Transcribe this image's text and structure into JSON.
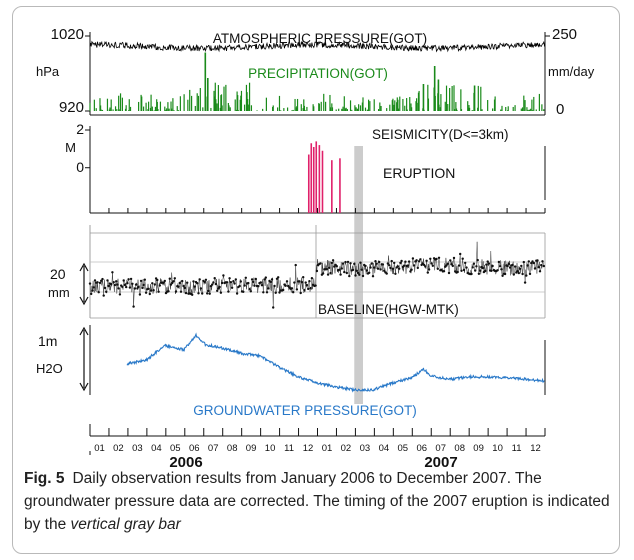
{
  "caption": {
    "label": "Fig. 5",
    "text": "Daily observation results from January 2006 to December 2007. The groundwater pressure data are corrected. The timing of the 2007 eruption is indicated by the",
    "emphasis": "vertical gray bar"
  },
  "chart_data": [
    {
      "type": "line",
      "title": "ATMOSPHERIC PRESSURE(GOT)",
      "ylabel": "hPa",
      "yticks": [
        "1020",
        "920"
      ],
      "ylim": [
        920,
        1020
      ],
      "color": "#000000",
      "description_values": {
        "mean": 1006,
        "amplitude": 8
      }
    },
    {
      "type": "bar",
      "title": "PRECIPITATION(GOT)",
      "ylabel": "mm/day",
      "yticks": [
        "250",
        "0"
      ],
      "ylim": [
        0,
        250
      ],
      "color": "#1a8a1a",
      "notable_days": [
        {
          "date": "2006-07-05",
          "value": 195
        },
        {
          "date": "2006-07-09",
          "value": 110
        },
        {
          "date": "2007-07-08",
          "value": 150
        },
        {
          "date": "2007-07-14",
          "value": 105
        },
        {
          "date": "2007-06-20",
          "value": 90
        },
        {
          "date": "2007-09-10",
          "value": 85
        }
      ]
    },
    {
      "type": "bar",
      "title": "SEISMICITY(D<=3km)",
      "ylabel": "M",
      "yticks": [
        "2",
        "0"
      ],
      "ylim": [
        -2.4,
        2
      ],
      "color": "#e0206a",
      "events": [
        {
          "date": "2006-12-18",
          "magnitude": 0.7
        },
        {
          "date": "2006-12-22",
          "magnitude": 1.3
        },
        {
          "date": "2006-12-26",
          "magnitude": 1.1
        },
        {
          "date": "2006-12-30",
          "magnitude": 1.4
        },
        {
          "date": "2007-01-04",
          "magnitude": 1.2
        },
        {
          "date": "2007-01-09",
          "magnitude": 0.9
        },
        {
          "date": "2007-01-24",
          "magnitude": 0.4
        },
        {
          "date": "2007-02-06",
          "magnitude": 0.5
        }
      ],
      "annotation": "ERUPTION"
    },
    {
      "type": "scatter",
      "title": "BASELINE(HGW-MTK)",
      "ylabel": "mm",
      "scale_bar": "20",
      "color": "#111111",
      "trend": [
        {
          "date": "2006-01-01",
          "value": 0
        },
        {
          "date": "2006-12-01",
          "value": 0
        },
        {
          "date": "2007-01-01",
          "value": 10
        },
        {
          "date": "2007-12-31",
          "value": 10
        }
      ]
    },
    {
      "type": "line",
      "title": "GROUNDWATER PRESSURE(GOT)",
      "ylabel": "H2O",
      "scale_bar": "1m",
      "color": "#2878c8",
      "x_start": "2006-03-01",
      "series": [
        {
          "date": "2006-03-01",
          "value": 0.35
        },
        {
          "date": "2006-04-01",
          "value": 0.42
        },
        {
          "date": "2006-05-01",
          "value": 0.7
        },
        {
          "date": "2006-06-01",
          "value": 0.62
        },
        {
          "date": "2006-06-20",
          "value": 0.9
        },
        {
          "date": "2006-07-05",
          "value": 0.72
        },
        {
          "date": "2006-08-01",
          "value": 0.65
        },
        {
          "date": "2006-09-01",
          "value": 0.55
        },
        {
          "date": "2006-10-01",
          "value": 0.5
        },
        {
          "date": "2006-11-01",
          "value": 0.28
        },
        {
          "date": "2006-12-01",
          "value": 0.1
        },
        {
          "date": "2007-01-01",
          "value": -0.02
        },
        {
          "date": "2007-02-01",
          "value": -0.1
        },
        {
          "date": "2007-03-01",
          "value": -0.15
        },
        {
          "date": "2007-04-01",
          "value": -0.15
        },
        {
          "date": "2007-05-01",
          "value": -0.02
        },
        {
          "date": "2007-06-01",
          "value": 0.08
        },
        {
          "date": "2007-06-20",
          "value": 0.25
        },
        {
          "date": "2007-07-01",
          "value": 0.12
        },
        {
          "date": "2007-08-01",
          "value": 0.05
        },
        {
          "date": "2007-09-01",
          "value": 0.1
        },
        {
          "date": "2007-10-01",
          "value": 0.1
        },
        {
          "date": "2007-11-01",
          "value": 0.08
        },
        {
          "date": "2007-12-31",
          "value": 0.02
        }
      ]
    }
  ],
  "x_axis": {
    "months": [
      "01",
      "02",
      "03",
      "04",
      "05",
      "06",
      "07",
      "08",
      "09",
      "10",
      "11",
      "12",
      "01",
      "02",
      "03",
      "04",
      "05",
      "06",
      "07",
      "08",
      "09",
      "10",
      "11",
      "12"
    ],
    "years": [
      "2006",
      "2007"
    ]
  },
  "eruption_bar": {
    "start": "2007-03-01",
    "end": "2007-03-15",
    "color": "#cccccc"
  }
}
